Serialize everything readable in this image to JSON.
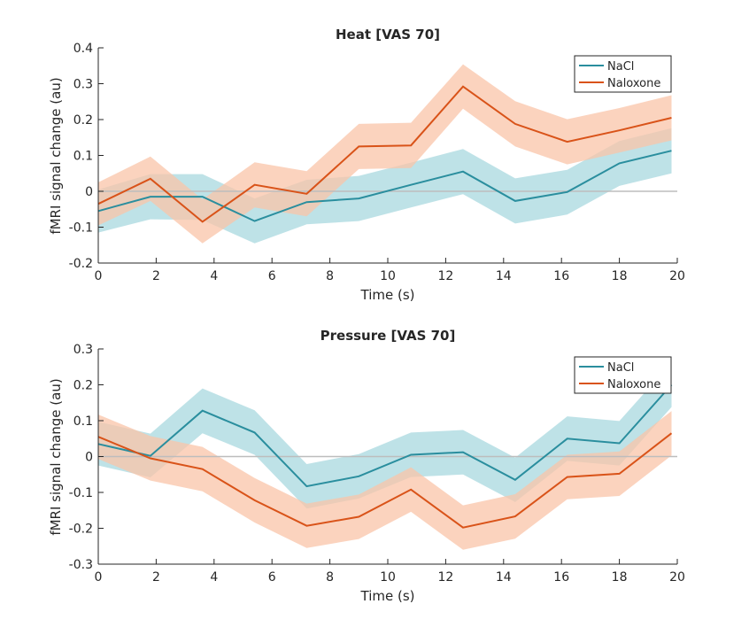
{
  "colors": {
    "nacl_line": "#2a8e9e",
    "nacl_band": "#a8d8df",
    "naloxone_line": "#d95319",
    "naloxone_band": "#f9c4a8",
    "zero_line": "#bdbdbd",
    "axis": "#262626"
  },
  "chart_data": [
    {
      "type": "line",
      "title": "Heat [VAS 70]",
      "xlabel": "Time (s)",
      "ylabel": "fMRI signal change (au)",
      "xlim": [
        0,
        20
      ],
      "ylim": [
        -0.2,
        0.4
      ],
      "x_ticks": [
        0,
        2,
        4,
        6,
        8,
        10,
        12,
        14,
        16,
        18,
        20
      ],
      "x_tick_labels": [
        "0",
        "2",
        "4",
        "6",
        "8",
        "10",
        "12",
        "14",
        "16",
        "18",
        "20"
      ],
      "y_ticks": [
        -0.2,
        -0.1,
        0,
        0.1,
        0.2,
        0.3,
        0.4
      ],
      "y_tick_labels": [
        "-0.2",
        "-0.1",
        "0",
        "0.1",
        "0.2",
        "0.3",
        "0.4"
      ],
      "grid": false,
      "legend_position": "top-right",
      "x": [
        0,
        1.8,
        3.6,
        5.4,
        7.2,
        9.0,
        10.8,
        12.6,
        14.4,
        16.2,
        18.0,
        19.8
      ],
      "series": [
        {
          "name": "NaCl",
          "values": [
            -0.055,
            -0.015,
            -0.015,
            -0.083,
            -0.03,
            -0.02,
            0.018,
            0.055,
            -0.027,
            -0.002,
            0.078,
            0.113
          ],
          "lower": [
            -0.115,
            -0.078,
            -0.08,
            -0.145,
            -0.092,
            -0.083,
            -0.045,
            -0.008,
            -0.09,
            -0.065,
            0.015,
            0.05
          ],
          "upper": [
            0.005,
            0.048,
            0.048,
            -0.02,
            0.032,
            0.043,
            0.08,
            0.118,
            0.036,
            0.06,
            0.14,
            0.176
          ]
        },
        {
          "name": "Naloxone",
          "values": [
            -0.035,
            0.035,
            -0.085,
            0.018,
            -0.007,
            0.125,
            0.128,
            0.292,
            0.188,
            0.138,
            0.17,
            0.205
          ],
          "lower": [
            -0.095,
            -0.027,
            -0.145,
            -0.045,
            -0.07,
            0.062,
            0.065,
            0.23,
            0.125,
            0.075,
            0.108,
            0.142
          ],
          "upper": [
            0.025,
            0.097,
            -0.023,
            0.081,
            0.056,
            0.188,
            0.191,
            0.354,
            0.251,
            0.201,
            0.232,
            0.268
          ]
        }
      ]
    },
    {
      "type": "line",
      "title": "Pressure [VAS 70]",
      "xlabel": "Time (s)",
      "ylabel": "fMRI signal change (au)",
      "xlim": [
        0,
        20
      ],
      "ylim": [
        -0.3,
        0.3
      ],
      "x_ticks": [
        0,
        2,
        4,
        6,
        8,
        10,
        12,
        14,
        16,
        18,
        20
      ],
      "x_tick_labels": [
        "0",
        "2",
        "4",
        "6",
        "8",
        "10",
        "12",
        "14",
        "16",
        "18",
        "20"
      ],
      "y_ticks": [
        -0.3,
        -0.2,
        -0.1,
        0,
        0.1,
        0.2,
        0.3
      ],
      "y_tick_labels": [
        "-0.3",
        "-0.2",
        "-0.1",
        "0",
        "0.1",
        "0.2",
        "0.3"
      ],
      "grid": false,
      "legend_position": "top-right",
      "x": [
        0,
        1.8,
        3.6,
        5.4,
        7.2,
        9.0,
        10.8,
        12.6,
        14.4,
        16.2,
        18.0,
        19.8
      ],
      "series": [
        {
          "name": "NaCl",
          "values": [
            0.035,
            0.002,
            0.128,
            0.067,
            -0.083,
            -0.055,
            0.005,
            0.012,
            -0.065,
            0.05,
            0.037,
            0.2
          ],
          "lower": [
            -0.025,
            -0.058,
            0.065,
            0.005,
            -0.145,
            -0.117,
            -0.057,
            -0.05,
            -0.127,
            -0.012,
            -0.025,
            0.138
          ],
          "upper": [
            0.097,
            0.064,
            0.19,
            0.129,
            -0.021,
            0.007,
            0.067,
            0.074,
            -0.003,
            0.112,
            0.099,
            0.262
          ]
        },
        {
          "name": "Naloxone",
          "values": [
            0.055,
            -0.005,
            -0.035,
            -0.122,
            -0.193,
            -0.168,
            -0.092,
            -0.198,
            -0.167,
            -0.057,
            -0.048,
            0.065
          ],
          "lower": [
            -0.007,
            -0.067,
            -0.097,
            -0.184,
            -0.255,
            -0.23,
            -0.154,
            -0.26,
            -0.229,
            -0.119,
            -0.11,
            0.003
          ],
          "upper": [
            0.117,
            0.057,
            0.027,
            -0.06,
            -0.131,
            -0.106,
            -0.03,
            -0.136,
            -0.105,
            0.005,
            0.014,
            0.127
          ]
        }
      ]
    }
  ]
}
